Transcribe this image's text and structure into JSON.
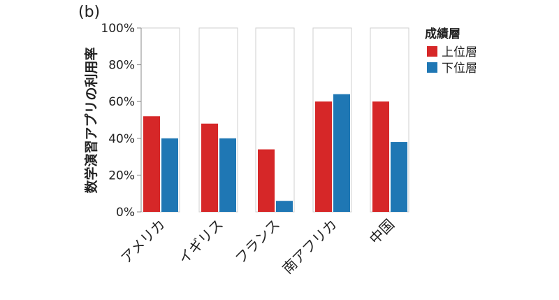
{
  "chart_data": {
    "type": "bar",
    "panel_label": "(b)",
    "categories": [
      "アメリカ",
      "イギリス",
      "フランス",
      "南アフリカ",
      "中国"
    ],
    "series": [
      {
        "name": "上位層",
        "color": "#d62728",
        "values": [
          52,
          48,
          34,
          60,
          60
        ]
      },
      {
        "name": "下位層",
        "color": "#1f77b4",
        "values": [
          40,
          40,
          6,
          64,
          38
        ]
      }
    ],
    "ylabel": "数学演習アプリの利用率",
    "ylim": [
      0,
      100
    ],
    "yticks": [
      "0%",
      "20%",
      "40%",
      "60%",
      "80%",
      "100%"
    ],
    "legend_title": "成績層",
    "legend_position": "right",
    "grid": false
  }
}
